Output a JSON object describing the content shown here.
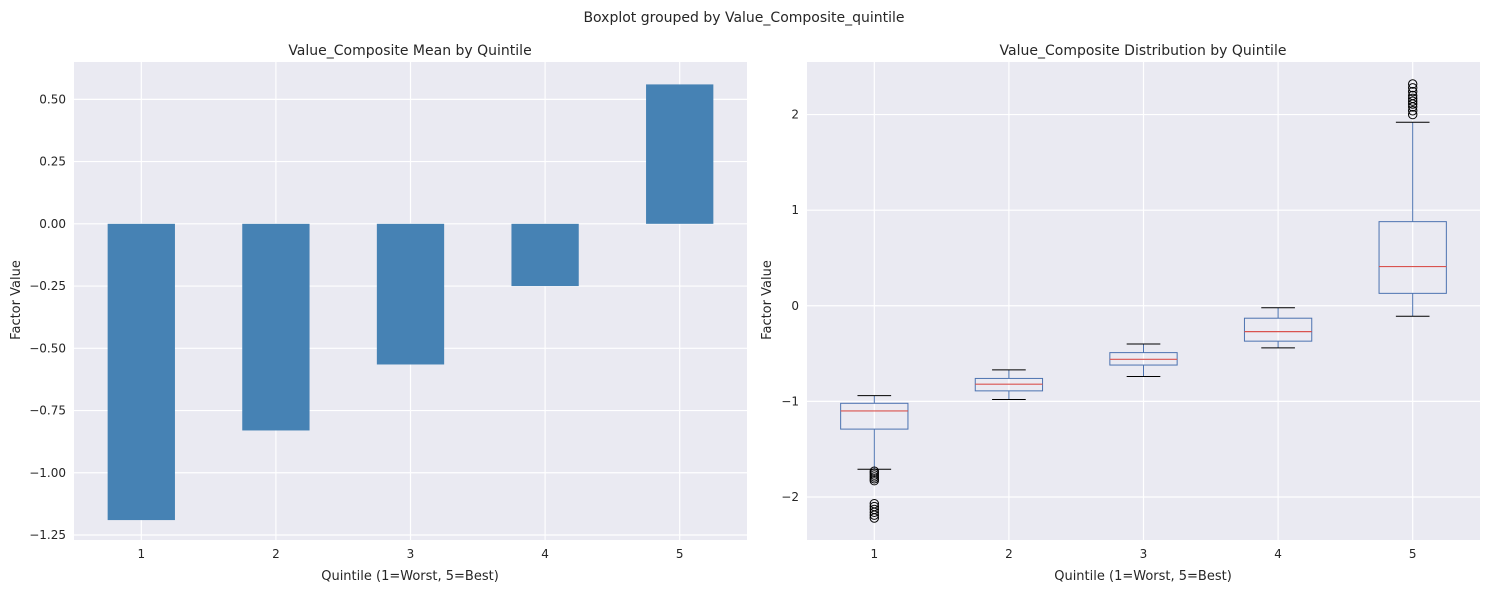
{
  "figure": {
    "suptitle": "Boxplot grouped by Value_Composite_quintile"
  },
  "colors": {
    "panel_bg": "#eaeaf2",
    "grid": "#ffffff",
    "bar": "#4682b4",
    "box": "#4c72b0",
    "median": "#d9534f",
    "whisker": "#4c72b0",
    "cap": "#000000",
    "flier": "#000000"
  },
  "chart_data": [
    {
      "type": "bar",
      "title": "Value_Composite Mean by Quintile",
      "xlabel": "Quintile (1=Worst, 5=Best)",
      "ylabel": "Factor Value",
      "categories": [
        "1",
        "2",
        "3",
        "4",
        "5"
      ],
      "values": [
        -1.19,
        -0.83,
        -0.565,
        -0.25,
        0.56
      ],
      "ylim": [
        -1.27,
        0.65
      ],
      "yticks": [
        -1.25,
        -1.0,
        -0.75,
        -0.5,
        -0.25,
        0.0,
        0.25,
        0.5
      ],
      "ytick_labels": [
        "−1.25",
        "−1.00",
        "−0.75",
        "−0.50",
        "−0.25",
        "0.00",
        "0.25",
        "0.50"
      ],
      "grid": true
    },
    {
      "type": "boxplot",
      "title": "Value_Composite Distribution by Quintile",
      "xlabel": "Quintile (1=Worst, 5=Best)",
      "ylabel": "Factor Value",
      "categories": [
        "1",
        "2",
        "3",
        "4",
        "5"
      ],
      "ylim": [
        -2.45,
        2.55
      ],
      "yticks": [
        -2,
        -1,
        0,
        1,
        2
      ],
      "ytick_labels": [
        "−2",
        "−1",
        "0",
        "1",
        "2"
      ],
      "grid": true,
      "boxes": [
        {
          "category": "1",
          "whisker_low": -1.71,
          "q1": -1.29,
          "median": -1.1,
          "q3": -1.02,
          "whisker_high": -0.94,
          "outliers": [
            -1.73,
            -1.75,
            -1.77,
            -1.79,
            -1.81,
            -1.83,
            -2.07,
            -2.1,
            -2.13,
            -2.16,
            -2.19,
            -2.22
          ]
        },
        {
          "category": "2",
          "whisker_low": -0.98,
          "q1": -0.89,
          "median": -0.82,
          "q3": -0.76,
          "whisker_high": -0.67,
          "outliers": []
        },
        {
          "category": "3",
          "whisker_low": -0.74,
          "q1": -0.62,
          "median": -0.56,
          "q3": -0.49,
          "whisker_high": -0.4,
          "outliers": []
        },
        {
          "category": "4",
          "whisker_low": -0.44,
          "q1": -0.37,
          "median": -0.27,
          "q3": -0.13,
          "whisker_high": -0.02,
          "outliers": []
        },
        {
          "category": "5",
          "whisker_low": -0.11,
          "q1": 0.13,
          "median": 0.41,
          "q3": 0.88,
          "whisker_high": 1.92,
          "outliers": [
            2.0,
            2.04,
            2.08,
            2.11,
            2.14,
            2.17,
            2.2,
            2.24,
            2.28,
            2.32
          ]
        }
      ]
    }
  ]
}
